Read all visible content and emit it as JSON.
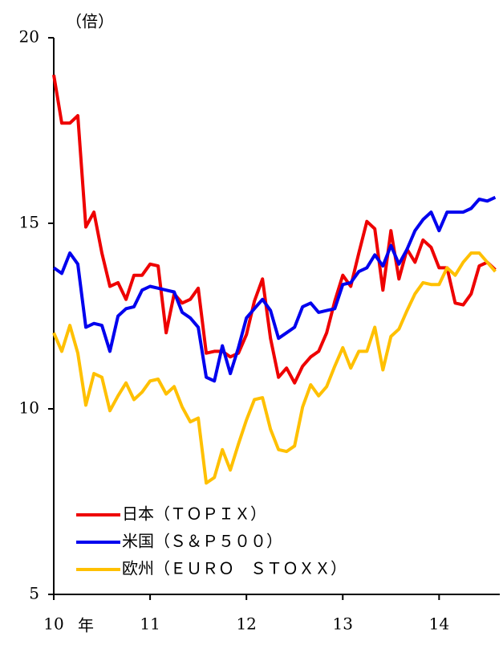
{
  "chart_data": {
    "type": "line",
    "y_label": "（倍）",
    "x_label": "年",
    "x": [
      10,
      10.083,
      10.167,
      10.25,
      10.333,
      10.417,
      10.5,
      10.583,
      10.667,
      10.75,
      10.833,
      10.917,
      11,
      11.083,
      11.167,
      11.25,
      11.333,
      11.417,
      11.5,
      11.583,
      11.667,
      11.75,
      11.833,
      11.917,
      12,
      12.083,
      12.167,
      12.25,
      12.333,
      12.417,
      12.5,
      12.583,
      12.667,
      12.75,
      12.833,
      12.917,
      13,
      13.083,
      13.167,
      13.25,
      13.333,
      13.417,
      13.5,
      13.583,
      13.667,
      13.75,
      13.833,
      13.917,
      14,
      14.083,
      14.167,
      14.25,
      14.333,
      14.417,
      14.5,
      14.583
    ],
    "series": [
      {
        "name": "日本（ＴＯＰＩＸ）",
        "color": "#ee0000",
        "values": [
          19.0,
          17.7,
          17.7,
          17.9,
          14.9,
          15.3,
          14.2,
          13.3,
          13.4,
          12.95,
          13.6,
          13.6,
          13.9,
          13.85,
          12.05,
          13.1,
          12.85,
          12.95,
          13.25,
          11.5,
          11.55,
          11.55,
          11.4,
          11.5,
          12.0,
          12.9,
          13.5,
          11.9,
          10.85,
          11.1,
          10.7,
          11.15,
          11.4,
          11.55,
          12.05,
          12.9,
          13.6,
          13.3,
          14.2,
          15.05,
          14.85,
          13.2,
          14.8,
          13.5,
          14.3,
          13.95,
          14.55,
          14.35,
          13.8,
          13.8,
          12.85,
          12.8,
          13.1,
          13.85,
          13.95,
          13.75
        ]
      },
      {
        "name": "米国（Ｓ＆Ｐ５００）",
        "color": "#0000ee",
        "values": [
          13.8,
          13.65,
          14.2,
          13.9,
          12.2,
          12.3,
          12.25,
          11.55,
          12.5,
          12.7,
          12.75,
          13.2,
          13.3,
          13.25,
          13.2,
          13.15,
          12.6,
          12.45,
          12.2,
          10.85,
          10.75,
          11.7,
          10.95,
          11.65,
          12.45,
          12.7,
          12.95,
          12.65,
          11.9,
          12.05,
          12.2,
          12.75,
          12.85,
          12.6,
          12.65,
          12.7,
          13.35,
          13.4,
          13.7,
          13.8,
          14.15,
          13.85,
          14.4,
          13.9,
          14.3,
          14.8,
          15.1,
          15.3,
          14.8,
          15.3,
          15.3,
          15.3,
          15.4,
          15.65,
          15.6,
          15.7
        ]
      },
      {
        "name": "欧州（ＥＵＲＯ　ＳＴＯＸＸ）",
        "color": "#ffc000",
        "values": [
          12.05,
          11.55,
          12.25,
          11.5,
          10.1,
          10.95,
          10.85,
          9.95,
          10.35,
          10.7,
          10.25,
          10.45,
          10.75,
          10.8,
          10.4,
          10.6,
          10.05,
          9.65,
          9.75,
          8.0,
          8.15,
          8.9,
          8.35,
          9.05,
          9.7,
          10.25,
          10.3,
          9.45,
          8.9,
          8.85,
          9.0,
          10.05,
          10.65,
          10.35,
          10.6,
          11.15,
          11.65,
          11.1,
          11.55,
          11.55,
          12.2,
          11.05,
          11.95,
          12.15,
          12.65,
          13.1,
          13.4,
          13.35,
          13.35,
          13.8,
          13.6,
          13.95,
          14.2,
          14.2,
          13.95,
          13.7
        ]
      }
    ],
    "xlim": [
      10,
      14.63
    ],
    "xticks": [
      10,
      11,
      12,
      13,
      14
    ],
    "ylim": [
      5,
      20
    ],
    "yticks": [
      5,
      10,
      15,
      20
    ],
    "legend": "bottom-left"
  }
}
